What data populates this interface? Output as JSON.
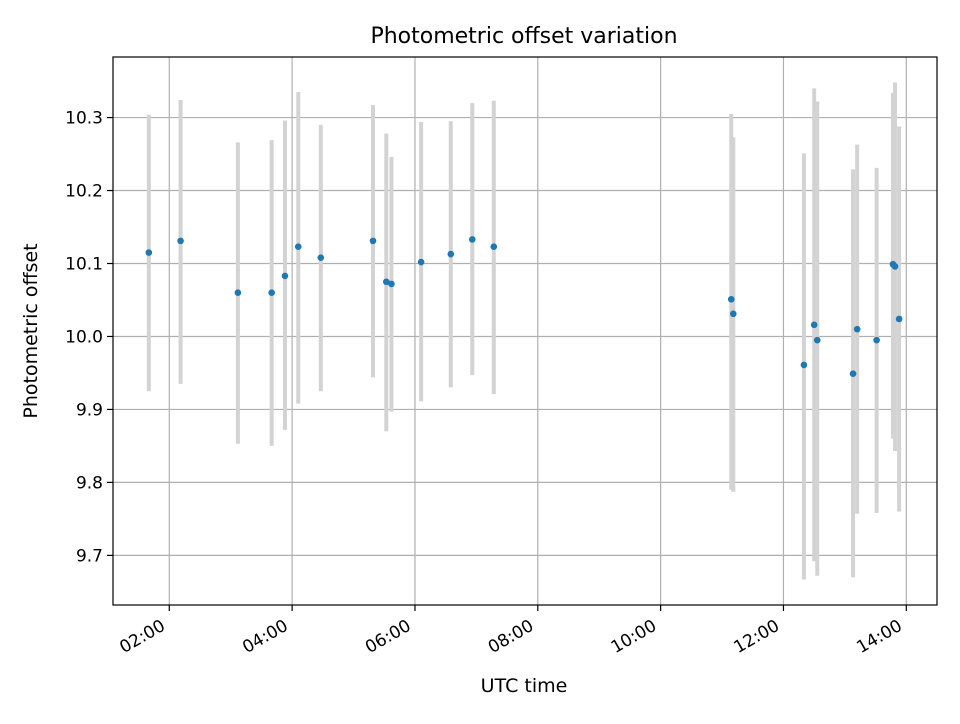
{
  "chart_data": {
    "type": "scatter",
    "title": "Photometric offset variation",
    "xlabel": "UTC time",
    "ylabel": "Photometric offset",
    "xlim": [
      "01:05",
      "14:30"
    ],
    "ylim": [
      9.632,
      10.383
    ],
    "grid": true,
    "x_ticks": [
      "02:00",
      "04:00",
      "06:00",
      "08:00",
      "10:00",
      "12:00",
      "14:00"
    ],
    "y_ticks": [
      9.7,
      9.8,
      9.9,
      10.0,
      10.1,
      10.2,
      10.3
    ],
    "y_tick_labels": [
      "9.7",
      "9.8",
      "9.9",
      "10.0",
      "10.1",
      "10.2",
      "10.3"
    ],
    "point_color": "#1f77b4",
    "errorbar_color": "#d3d3d3",
    "series": [
      {
        "x": [
          "01:40",
          "02:11",
          "03:07",
          "03:40",
          "03:53",
          "04:06",
          "04:28",
          "05:19",
          "05:32",
          "05:37",
          "06:06",
          "06:35",
          "06:56",
          "07:17",
          "11:09",
          "11:11",
          "12:20",
          "12:30",
          "12:33",
          "13:08",
          "13:12",
          "13:31",
          "13:47",
          "13:49",
          "13:53"
        ],
        "y": [
          10.115,
          10.131,
          10.06,
          10.06,
          10.083,
          10.123,
          10.108,
          10.131,
          10.075,
          10.072,
          10.102,
          10.113,
          10.133,
          10.123,
          10.051,
          10.031,
          9.961,
          10.016,
          9.995,
          9.949,
          10.01,
          9.995,
          10.099,
          10.096,
          10.024
        ],
        "yerr_low": [
          9.925,
          9.935,
          9.853,
          9.85,
          9.872,
          9.908,
          9.925,
          9.944,
          9.87,
          9.897,
          9.911,
          9.93,
          9.947,
          9.921,
          9.79,
          9.787,
          9.667,
          9.692,
          9.672,
          9.67,
          9.757,
          9.758,
          9.86,
          9.843,
          9.76
        ],
        "yerr_high": [
          10.304,
          10.324,
          10.266,
          10.269,
          10.296,
          10.335,
          10.29,
          10.317,
          10.278,
          10.246,
          10.294,
          10.295,
          10.32,
          10.323,
          10.305,
          10.273,
          10.251,
          10.34,
          10.322,
          10.229,
          10.263,
          10.231,
          10.334,
          10.348,
          10.288
        ]
      }
    ]
  }
}
